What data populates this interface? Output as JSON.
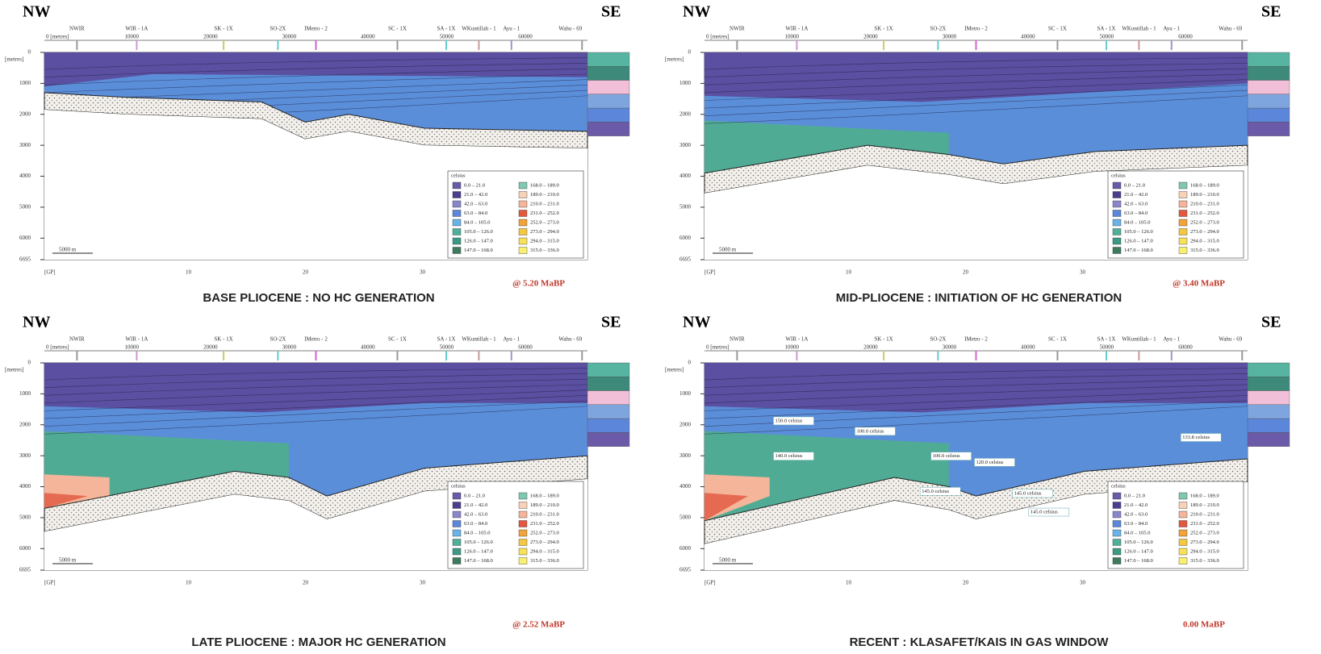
{
  "panels": [
    {
      "left": "NW",
      "right": "SE",
      "caption": "BASE PLIOCENE : NO HC GENERATION",
      "age": "@ 5.20 MaBP"
    },
    {
      "left": "NW",
      "right": "SE",
      "caption": "MID-PLIOCENE : INITIATION OF HC GENERATION",
      "age": "@ 3.40 MaBP"
    },
    {
      "left": "NW",
      "right": "SE",
      "caption": "LATE PLIOCENE : MAJOR HC GENERATION",
      "age": "@ 2.52 MaBP"
    },
    {
      "left": "NW",
      "right": "SE",
      "caption": "RECENT : KLASAFET/KAIS IN GAS WINDOW",
      "age": "0.00 MaBP",
      "annotations": [
        "150.0 celsius",
        "100.0 celsius",
        "140.0 celsius",
        "100.0 celsius",
        "120.0 celsius",
        "145.0 celsius",
        "145.0 celsius",
        "145.0 celsius",
        "133.8 celsius"
      ]
    }
  ],
  "wells": [
    "NWIR",
    "WIR - 1A",
    "SK - 1X",
    "SO-2X",
    "IMetro - 2",
    "SC - 1X",
    "SA - 1X",
    "WKuntillah - 1",
    "Ayu - 1",
    "Wahu - 69"
  ],
  "distance_ticks": [
    "0 [metres]",
    "10000",
    "20000",
    "30000",
    "40000",
    "50000",
    "60000"
  ],
  "depth_unit": "[metres]",
  "depth_ticks": [
    "0",
    "1000",
    "2000",
    "3000",
    "4000",
    "5000",
    "6000",
    "6695"
  ],
  "grid_ticks": [
    "[GP]",
    "10",
    "20",
    "30"
  ],
  "scale_bar": "5000 m",
  "legend": {
    "title": "celsius",
    "entries": [
      "0.0 – 21.0",
      "21.0 – 42.0",
      "42.0 – 63.0",
      "63.0 – 84.0",
      "84.0 – 105.0",
      "105.0 – 126.0",
      "126.0 – 147.0",
      "147.0 – 168.0",
      "168.0 – 189.0",
      "189.0 – 210.0",
      "210.0 – 231.0",
      "231.0 – 252.0",
      "252.0 – 273.0",
      "273.0 – 294.0",
      "294.0 – 315.0",
      "315.0 – 336.0"
    ]
  }
}
